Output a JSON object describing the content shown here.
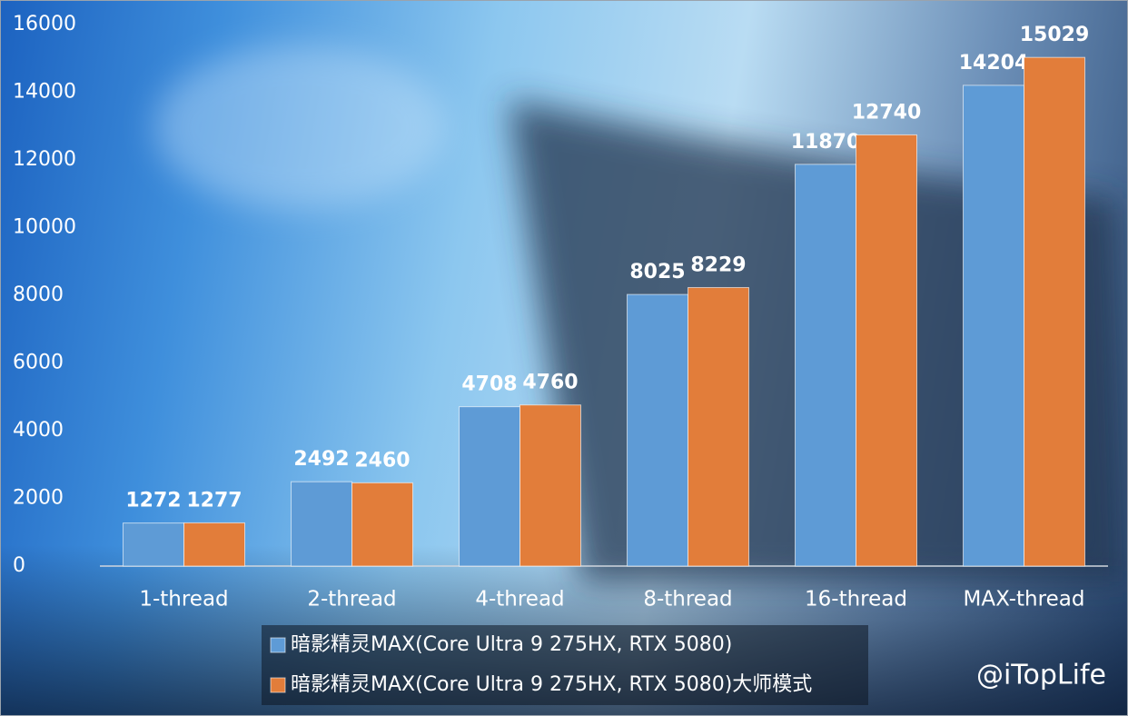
{
  "chart_data": {
    "type": "bar",
    "categories": [
      "1-thread",
      "2-thread",
      "4-thread",
      "8-thread",
      "16-thread",
      "MAX-thread"
    ],
    "series": [
      {
        "name": "暗影精灵MAX(Core Ultra 9 275HX, RTX 5080)",
        "color": "#5e9bd6",
        "values": [
          1272,
          2492,
          4708,
          8025,
          11870,
          14204
        ]
      },
      {
        "name": "暗影精灵MAX(Core Ultra 9 275HX, RTX 5080)大师模式",
        "color": "#e27d3a",
        "values": [
          1277,
          2460,
          4760,
          8229,
          12740,
          15029
        ]
      }
    ],
    "ylim": [
      0,
      16000
    ],
    "yticks": [
      0,
      2000,
      4000,
      6000,
      8000,
      10000,
      12000,
      14000,
      16000
    ],
    "grid": false,
    "legend": "bottom"
  },
  "watermark": "@iTopLife"
}
